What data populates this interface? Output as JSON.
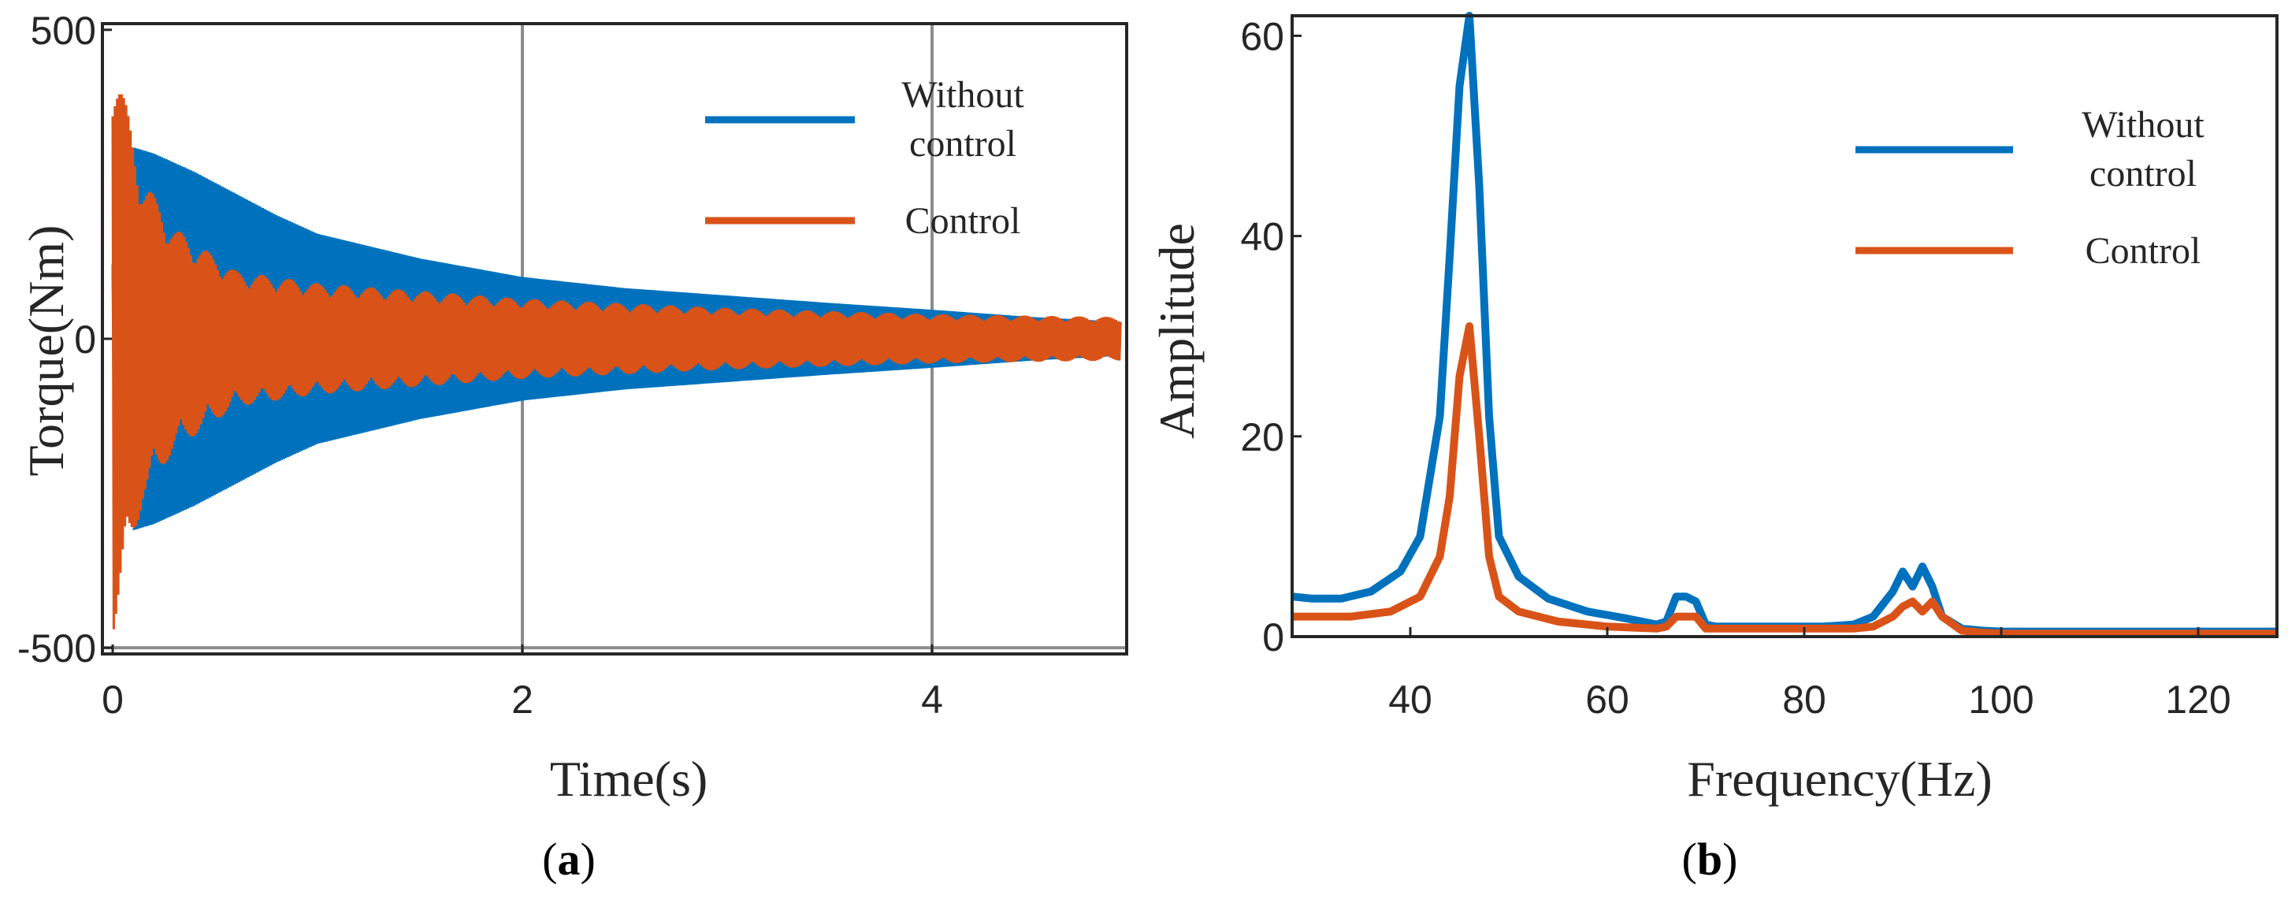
{
  "chart_data": [
    {
      "type": "line",
      "panel_caption": "a",
      "xlabel": "Time(s)",
      "ylabel": "Torque(Nm)",
      "xlim": [
        -0.05,
        4.95
      ],
      "ylim": [
        -510,
        510
      ],
      "xticks": [
        {
          "value": 0,
          "label": "0"
        },
        {
          "value": 2,
          "label": "2"
        },
        {
          "value": 4,
          "label": "4"
        }
      ],
      "yticks": [
        {
          "value": 500,
          "label": "500"
        },
        {
          "value": 0,
          "label": "0"
        },
        {
          "value": -500,
          "label": "-500"
        }
      ],
      "grid_x": [
        2,
        4
      ],
      "grid_y": [
        -500
      ],
      "legend_position": "top-right",
      "series": [
        {
          "name": "Without control",
          "legend_lines": [
            "Without",
            "control"
          ],
          "color": "#0072BD",
          "envelope": {
            "t": [
              0,
              0.1,
              0.2,
              0.4,
              0.6,
              0.8,
              1.0,
              1.5,
              2.0,
              2.5,
              3.0,
              3.5,
              4.0,
              4.5,
              4.95
            ],
            "amp": [
              120,
              310,
              300,
              270,
              235,
              200,
              170,
              130,
              100,
              82,
              70,
              58,
              47,
              35,
              27
            ]
          }
        },
        {
          "name": "Control",
          "legend_lines": [
            "Control"
          ],
          "color": "#D95319",
          "envelope": {
            "t": [
              0,
              0.05,
              0.15,
              0.3,
              0.6,
              1.0,
              2.0,
              3.0,
              4.0,
              4.95
            ],
            "amp": [
              480,
              400,
              260,
              180,
              110,
              90,
              65,
              50,
              40,
              35
            ]
          }
        }
      ]
    },
    {
      "type": "line",
      "panel_caption": "b",
      "xlabel": "Frequency(Hz)",
      "ylabel": "Amplitude",
      "xlim": [
        28,
        128
      ],
      "ylim": [
        0,
        62
      ],
      "xticks": [
        {
          "value": 40,
          "label": "40"
        },
        {
          "value": 60,
          "label": "60"
        },
        {
          "value": 80,
          "label": "80"
        },
        {
          "value": 100,
          "label": "100"
        },
        {
          "value": 120,
          "label": "120"
        }
      ],
      "yticks": [
        {
          "value": 0,
          "label": "0"
        },
        {
          "value": 20,
          "label": "20"
        },
        {
          "value": 40,
          "label": "40"
        },
        {
          "value": 60,
          "label": "60"
        }
      ],
      "legend_position": "top-right",
      "series": [
        {
          "name": "Without control",
          "legend_lines": [
            "Without",
            "control"
          ],
          "color": "#0072BD",
          "x": [
            28,
            30,
            33,
            36,
            39,
            41,
            43,
            44,
            45,
            46,
            47,
            48,
            49,
            51,
            54,
            58,
            62,
            65,
            66,
            67,
            68,
            69,
            70,
            71,
            74,
            78,
            82,
            85,
            87,
            89,
            90,
            91,
            92,
            93,
            94,
            96,
            98,
            100,
            105,
            110,
            115,
            120,
            128
          ],
          "y": [
            4,
            3.8,
            3.8,
            4.5,
            6.5,
            10,
            22,
            38,
            55,
            62,
            45,
            22,
            10,
            6,
            3.8,
            2.5,
            1.8,
            1.2,
            1.5,
            4,
            4,
            3.5,
            1.2,
            1,
            1,
            1,
            1,
            1.2,
            2,
            4.5,
            6.5,
            5,
            7,
            5,
            2,
            0.8,
            0.6,
            0.5,
            0.5,
            0.5,
            0.5,
            0.5,
            0.5
          ]
        },
        {
          "name": "Control",
          "legend_lines": [
            "Control"
          ],
          "color": "#D95319",
          "x": [
            28,
            30,
            34,
            38,
            41,
            43,
            44,
            45,
            46,
            47,
            48,
            49,
            51,
            55,
            60,
            65,
            66,
            67,
            68,
            69,
            70,
            71,
            75,
            80,
            85,
            87,
            89,
            90,
            91,
            92,
            93,
            94,
            96,
            98,
            100,
            110,
            120,
            128
          ],
          "y": [
            2,
            2,
            2,
            2.5,
            4,
            8,
            14,
            26,
            31,
            20,
            8,
            4,
            2.5,
            1.5,
            1,
            0.8,
            1,
            2,
            2,
            2,
            0.8,
            0.8,
            0.8,
            0.8,
            0.8,
            1,
            2,
            3,
            3.5,
            2.5,
            3.5,
            2,
            0.6,
            0.4,
            0.3,
            0.3,
            0.3,
            0.3
          ]
        }
      ]
    }
  ]
}
